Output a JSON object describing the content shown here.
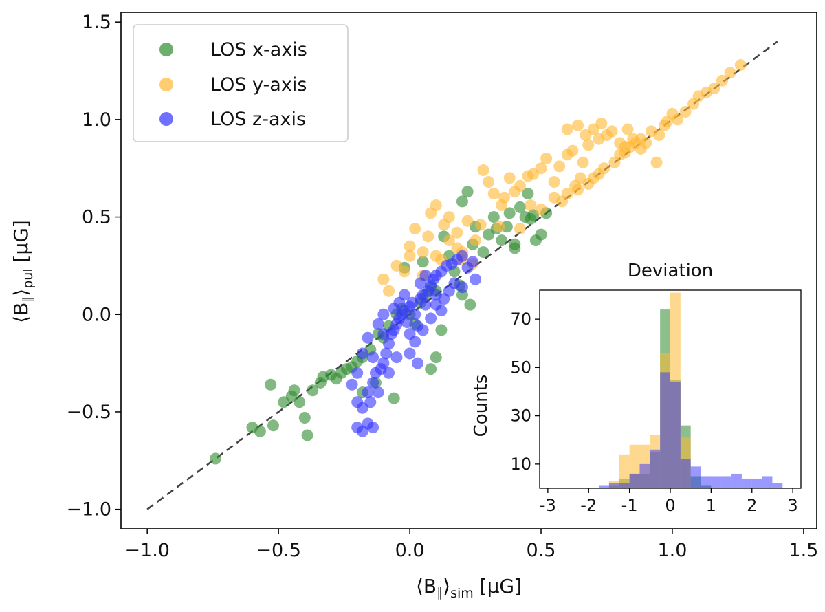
{
  "chart_data": [
    {
      "type": "scatter",
      "xlabel": "⟨B∥⟩sim [μG]",
      "ylabel": "⟨B∥⟩pul [μG]",
      "xlabel_parts": {
        "main": "⟨B",
        "sub1": "∥",
        "close": "⟩",
        "sub2": "sim",
        "unit": " [μG]"
      },
      "ylabel_parts": {
        "main": "⟨B",
        "sub1": "∥",
        "close": "⟩",
        "sub2": "pul",
        "unit": " [μG]"
      },
      "xlim": [
        -1.1,
        1.55
      ],
      "ylim": [
        -1.1,
        1.55
      ],
      "xticks": [
        -1.0,
        -0.5,
        0.0,
        0.5,
        1.0,
        1.5
      ],
      "yticks": [
        -1.0,
        -0.5,
        0.0,
        0.5,
        1.0,
        1.5
      ],
      "xtick_labels": [
        "−1.0",
        "−0.5",
        "0.0",
        "0.5",
        "1.0",
        "1.5"
      ],
      "ytick_labels": [
        "−1.0",
        "−0.5",
        "0.0",
        "0.5",
        "1.0",
        "1.5"
      ],
      "reference_line": {
        "x": [
          -1.0,
          1.4
        ],
        "y": [
          -1.0,
          1.4
        ],
        "style": "dashed",
        "color": "#444444"
      },
      "legend": {
        "placement": "top-left"
      },
      "series": [
        {
          "name": "LOS x-axis",
          "color": "#2e8b2e",
          "points": [
            [
              -0.74,
              -0.74
            ],
            [
              -0.6,
              -0.58
            ],
            [
              -0.57,
              -0.6
            ],
            [
              -0.53,
              -0.36
            ],
            [
              -0.52,
              -0.57
            ],
            [
              -0.48,
              -0.45
            ],
            [
              -0.45,
              -0.42
            ],
            [
              -0.44,
              -0.39
            ],
            [
              -0.42,
              -0.45
            ],
            [
              -0.4,
              -0.53
            ],
            [
              -0.39,
              -0.62
            ],
            [
              -0.37,
              -0.39
            ],
            [
              -0.34,
              -0.35
            ],
            [
              -0.33,
              -0.32
            ],
            [
              -0.3,
              -0.31
            ],
            [
              -0.28,
              -0.33
            ],
            [
              -0.26,
              -0.3
            ],
            [
              -0.24,
              -0.28
            ],
            [
              -0.22,
              -0.27
            ],
            [
              -0.2,
              -0.24
            ],
            [
              -0.18,
              -0.22
            ],
            [
              -0.15,
              -0.18
            ],
            [
              -0.13,
              -0.35
            ],
            [
              -0.12,
              -0.1
            ],
            [
              -0.1,
              -0.12
            ],
            [
              -0.08,
              -0.06
            ],
            [
              -0.06,
              -0.43
            ],
            [
              -0.05,
              0.0
            ],
            [
              -0.03,
              0.03
            ],
            [
              0.0,
              0.0
            ],
            [
              0.02,
              -0.05
            ],
            [
              0.04,
              0.06
            ],
            [
              0.06,
              0.1
            ],
            [
              0.08,
              0.14
            ],
            [
              0.1,
              0.12
            ],
            [
              0.12,
              -0.08
            ],
            [
              0.13,
              0.4
            ],
            [
              0.15,
              0.3
            ],
            [
              0.17,
              0.22
            ],
            [
              0.19,
              0.15
            ],
            [
              0.2,
              0.58
            ],
            [
              0.22,
              0.63
            ],
            [
              0.24,
              0.36
            ],
            [
              0.25,
              0.45
            ],
            [
              0.28,
              0.32
            ],
            [
              0.3,
              0.41
            ],
            [
              0.33,
              0.44
            ],
            [
              0.35,
              0.38
            ],
            [
              0.37,
              0.45
            ],
            [
              0.4,
              0.36
            ],
            [
              0.44,
              0.5
            ],
            [
              0.47,
              0.51
            ],
            [
              0.2,
              0.1
            ],
            [
              0.1,
              -0.22
            ],
            [
              0.08,
              -0.28
            ],
            [
              -0.02,
              0.24
            ],
            [
              0.05,
              0.27
            ],
            [
              -0.18,
              -0.4
            ],
            [
              0.23,
              0.05
            ],
            [
              0.4,
              0.34
            ],
            [
              0.42,
              0.55
            ],
            [
              0.46,
              0.49
            ],
            [
              0.32,
              0.5
            ],
            [
              0.52,
              0.52
            ],
            [
              0.48,
              0.38
            ],
            [
              0.5,
              0.41
            ],
            [
              0.45,
              0.62
            ],
            [
              0.38,
              0.52
            ]
          ]
        },
        {
          "name": "LOS y-axis",
          "color": "#ffb833",
          "points": [
            [
              -0.1,
              0.18
            ],
            [
              -0.05,
              0.25
            ],
            [
              0.0,
              0.35
            ],
            [
              0.02,
              0.44
            ],
            [
              0.05,
              0.2
            ],
            [
              0.08,
              0.52
            ],
            [
              0.1,
              0.56
            ],
            [
              0.13,
              0.46
            ],
            [
              0.15,
              0.5
            ],
            [
              0.18,
              0.42
            ],
            [
              0.2,
              0.32
            ],
            [
              0.22,
              0.48
            ],
            [
              0.25,
              0.38
            ],
            [
              0.27,
              0.46
            ],
            [
              0.28,
              0.74
            ],
            [
              0.3,
              0.68
            ],
            [
              0.32,
              0.62
            ],
            [
              0.35,
              0.56
            ],
            [
              0.38,
              0.7
            ],
            [
              0.4,
              0.63
            ],
            [
              0.42,
              0.66
            ],
            [
              0.45,
              0.71
            ],
            [
              0.47,
              0.72
            ],
            [
              0.5,
              0.75
            ],
            [
              0.52,
              0.8
            ],
            [
              0.55,
              0.68
            ],
            [
              0.57,
              0.76
            ],
            [
              0.6,
              0.82
            ],
            [
              0.62,
              0.84
            ],
            [
              0.63,
              0.66
            ],
            [
              0.65,
              0.7
            ],
            [
              0.66,
              0.78
            ],
            [
              0.68,
              0.87
            ],
            [
              0.7,
              0.95
            ],
            [
              0.72,
              0.9
            ],
            [
              0.73,
              0.98
            ],
            [
              0.75,
              0.92
            ],
            [
              0.77,
              0.94
            ],
            [
              0.8,
              0.88
            ],
            [
              0.82,
              0.86
            ],
            [
              0.83,
              0.95
            ],
            [
              0.85,
              0.9
            ],
            [
              0.88,
              0.85
            ],
            [
              0.9,
              0.88
            ],
            [
              0.92,
              0.94
            ],
            [
              0.94,
              0.78
            ],
            [
              0.95,
              0.92
            ],
            [
              0.97,
              0.97
            ],
            [
              0.98,
              0.99
            ],
            [
              1.0,
              1.03
            ],
            [
              1.02,
              1.0
            ],
            [
              1.05,
              1.04
            ],
            [
              1.08,
              1.08
            ],
            [
              1.1,
              1.12
            ],
            [
              1.13,
              1.14
            ],
            [
              1.16,
              1.16
            ],
            [
              1.19,
              1.2
            ],
            [
              1.22,
              1.24
            ],
            [
              1.26,
              1.28
            ],
            [
              0.55,
              0.6
            ],
            [
              0.6,
              0.62
            ],
            [
              0.64,
              0.64
            ],
            [
              0.68,
              0.67
            ],
            [
              0.7,
              0.7
            ],
            [
              0.72,
              0.72
            ],
            [
              0.74,
              0.75
            ],
            [
              0.78,
              0.78
            ],
            [
              0.8,
              0.82
            ],
            [
              0.82,
              0.83
            ],
            [
              0.84,
              0.86
            ],
            [
              0.86,
              0.88
            ],
            [
              0.88,
              0.9
            ],
            [
              0.5,
              0.54
            ],
            [
              0.46,
              0.56
            ],
            [
              0.42,
              0.44
            ],
            [
              0.1,
              0.3
            ],
            [
              0.15,
              0.38
            ],
            [
              0.2,
              0.28
            ],
            [
              0.24,
              0.26
            ],
            [
              0.05,
              0.32
            ],
            [
              -0.02,
              0.22
            ],
            [
              0.34,
              0.45
            ],
            [
              0.36,
              0.6
            ],
            [
              0.6,
              0.95
            ],
            [
              0.64,
              0.97
            ],
            [
              0.67,
              0.92
            ],
            [
              0.0,
              0.3
            ],
            [
              0.12,
              0.28
            ],
            [
              0.18,
              0.34
            ],
            [
              0.07,
              0.4
            ],
            [
              -0.08,
              0.12
            ],
            [
              0.58,
              0.58
            ]
          ]
        },
        {
          "name": "LOS z-axis",
          "color": "#3333ff",
          "points": [
            [
              -0.2,
              -0.58
            ],
            [
              -0.18,
              -0.6
            ],
            [
              -0.16,
              -0.56
            ],
            [
              -0.14,
              -0.58
            ],
            [
              -0.15,
              -0.45
            ],
            [
              -0.14,
              -0.35
            ],
            [
              -0.12,
              -0.4
            ],
            [
              -0.13,
              -0.3
            ],
            [
              -0.11,
              -0.28
            ],
            [
              -0.1,
              -0.25
            ],
            [
              -0.09,
              -0.2
            ],
            [
              -0.08,
              -0.15
            ],
            [
              -0.07,
              -0.1
            ],
            [
              -0.06,
              -0.08
            ],
            [
              -0.05,
              -0.05
            ],
            [
              -0.04,
              -0.02
            ],
            [
              -0.03,
              0.0
            ],
            [
              -0.02,
              0.02
            ],
            [
              -0.01,
              -0.04
            ],
            [
              0.0,
              0.04
            ],
            [
              0.01,
              0.06
            ],
            [
              0.02,
              0.0
            ],
            [
              0.03,
              -0.06
            ],
            [
              0.04,
              0.08
            ],
            [
              0.05,
              0.1
            ],
            [
              0.06,
              0.05
            ],
            [
              0.07,
              0.12
            ],
            [
              0.08,
              0.15
            ],
            [
              0.09,
              0.18
            ],
            [
              0.1,
              0.2
            ],
            [
              0.12,
              0.22
            ],
            [
              0.14,
              0.25
            ],
            [
              0.16,
              0.26
            ],
            [
              0.18,
              0.28
            ],
            [
              0.2,
              0.3
            ],
            [
              0.22,
              0.24
            ],
            [
              0.24,
              0.27
            ],
            [
              -0.18,
              -0.2
            ],
            [
              -0.2,
              -0.3
            ],
            [
              -0.22,
              -0.36
            ],
            [
              -0.16,
              -0.12
            ],
            [
              -0.12,
              -0.05
            ],
            [
              -0.1,
              0.0
            ],
            [
              -0.06,
              0.03
            ],
            [
              -0.04,
              0.06
            ],
            [
              0.0,
              -0.1
            ],
            [
              0.02,
              -0.14
            ],
            [
              0.05,
              -0.08
            ],
            [
              0.08,
              -0.02
            ],
            [
              0.1,
              0.05
            ],
            [
              0.13,
              0.08
            ],
            [
              0.15,
              0.12
            ],
            [
              0.17,
              0.16
            ],
            [
              -0.14,
              -0.22
            ],
            [
              -0.08,
              -0.3
            ],
            [
              -0.05,
              -0.22
            ],
            [
              0.0,
              -0.2
            ],
            [
              0.03,
              -0.25
            ],
            [
              -0.2,
              -0.45
            ],
            [
              -0.18,
              -0.48
            ],
            [
              -0.16,
              -0.4
            ],
            [
              0.06,
              0.2
            ],
            [
              0.1,
              0.1
            ],
            [
              -0.02,
              0.1
            ],
            [
              0.04,
              0.16
            ],
            [
              0.12,
              0.02
            ],
            [
              -0.1,
              -0.1
            ],
            [
              0.2,
              0.14
            ],
            [
              0.25,
              0.18
            ]
          ]
        }
      ]
    },
    {
      "type": "histogram",
      "title": "Deviation",
      "ylabel": "Counts",
      "xlim": [
        -3.2,
        3.2
      ],
      "ylim": [
        0,
        82
      ],
      "xticks": [
        -3,
        -2,
        -1,
        0,
        1,
        2,
        3
      ],
      "xtick_labels": [
        "-3",
        "-2",
        "-1",
        "0",
        "1",
        "2",
        "3"
      ],
      "yticks": [
        10,
        30,
        50,
        70
      ],
      "ytick_labels": [
        "10",
        "30",
        "50",
        "70"
      ],
      "bin_width": 0.25,
      "bin_start": -1.75,
      "series": [
        {
          "name": "LOS x-axis",
          "color": "#2e8b2e",
          "opacity": 0.55,
          "counts": [
            0,
            1,
            4,
            6,
            6,
            15,
            74,
            45,
            26,
            5,
            1,
            0,
            0,
            0,
            0,
            0,
            0,
            0,
            0
          ]
        },
        {
          "name": "LOS y-axis",
          "color": "#ffb833",
          "opacity": 0.55,
          "counts": [
            0,
            3,
            14,
            18,
            18,
            22,
            56,
            81,
            21,
            0,
            0,
            0,
            0,
            0,
            0,
            0,
            0,
            0,
            0
          ]
        },
        {
          "name": "LOS z-axis",
          "color": "#3333ff",
          "opacity": 0.5,
          "counts": [
            1,
            2,
            2,
            6,
            10,
            16,
            48,
            44,
            12,
            9,
            5,
            5,
            5,
            6,
            4,
            4,
            5,
            2,
            0
          ]
        }
      ]
    }
  ]
}
